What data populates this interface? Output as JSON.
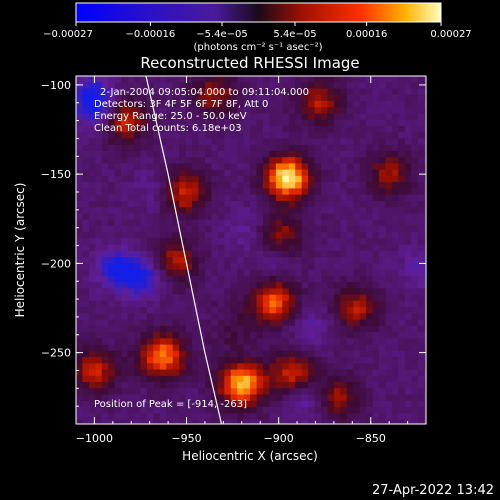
{
  "chart_data": {
    "type": "heatmap",
    "title": "Reconstructed RHESSI Image",
    "xlabel": "Heliocentric X (arcsec)",
    "ylabel": "Heliocentric Y (arcsec)",
    "xlim": [
      -1010,
      -820
    ],
    "ylim": [
      -290,
      -95
    ],
    "xticks": [
      {
        "value": -1000,
        "label": "−1000"
      },
      {
        "value": -950,
        "label": "−950"
      },
      {
        "value": -900,
        "label": "−900"
      },
      {
        "value": -850,
        "label": "−850"
      }
    ],
    "yticks": [
      {
        "value": -100,
        "label": "−100"
      },
      {
        "value": -150,
        "label": "−150"
      },
      {
        "value": -200,
        "label": "−200"
      },
      {
        "value": -250,
        "label": "−250"
      }
    ],
    "colorbar": {
      "min": -0.00027,
      "max": 0.00027,
      "ticks": [
        {
          "value": -0.00027,
          "label": "−0.00027"
        },
        {
          "value": -0.00016,
          "label": "−0.00016"
        },
        {
          "value": -5.4e-05,
          "label": "−5.4e−05"
        },
        {
          "value": 5.4e-05,
          "label": "5.4e−05"
        },
        {
          "value": 0.00016,
          "label": "0.00016"
        },
        {
          "value": 0.00027,
          "label": "0.00027"
        }
      ],
      "units": "(photons cm⁻² s⁻¹ asec⁻²)"
    },
    "peaks": [
      {
        "x": -895,
        "y": -152,
        "level": 1.0
      },
      {
        "x": -920,
        "y": -268,
        "level": 0.9
      },
      {
        "x": -963,
        "y": -252,
        "level": 0.8
      },
      {
        "x": -958,
        "y": -200,
        "level": 0.7
      },
      {
        "x": -985,
        "y": -120,
        "level": 0.7
      },
      {
        "x": -903,
        "y": -222,
        "level": 0.7
      },
      {
        "x": -952,
        "y": -160,
        "level": 0.6
      },
      {
        "x": -892,
        "y": -262,
        "level": 0.6
      },
      {
        "x": -930,
        "y": -235,
        "level": 0.55
      },
      {
        "x": -1000,
        "y": -260,
        "level": 0.55
      },
      {
        "x": -858,
        "y": -225,
        "level": 0.5
      },
      {
        "x": -840,
        "y": -150,
        "level": 0.45
      },
      {
        "x": -878,
        "y": -110,
        "level": 0.5
      },
      {
        "x": -935,
        "y": -105,
        "level": 0.45
      },
      {
        "x": -900,
        "y": -185,
        "level": 0.5
      },
      {
        "x": -868,
        "y": -275,
        "level": 0.45
      }
    ],
    "limb": [
      {
        "x": -972,
        "y": -95
      },
      {
        "x": -960,
        "y": -150
      },
      {
        "x": -950,
        "y": -200
      },
      {
        "x": -940,
        "y": -250
      },
      {
        "x": -931,
        "y": -290
      }
    ],
    "annotations": {
      "time": "2-Jan-2004 09:05:04.000 to 09:11:04.000",
      "detectors": "Detectors: 3F 4F 5F 6F 7F 8F, Att 0",
      "energy": "Energy Range: 25.0 - 50.0 keV",
      "clean": "Clean    Total counts: 6.18e+03",
      "peak": "Position of Peak = [-914, -263]"
    },
    "timestamp": "27-Apr-2022 13:42"
  }
}
